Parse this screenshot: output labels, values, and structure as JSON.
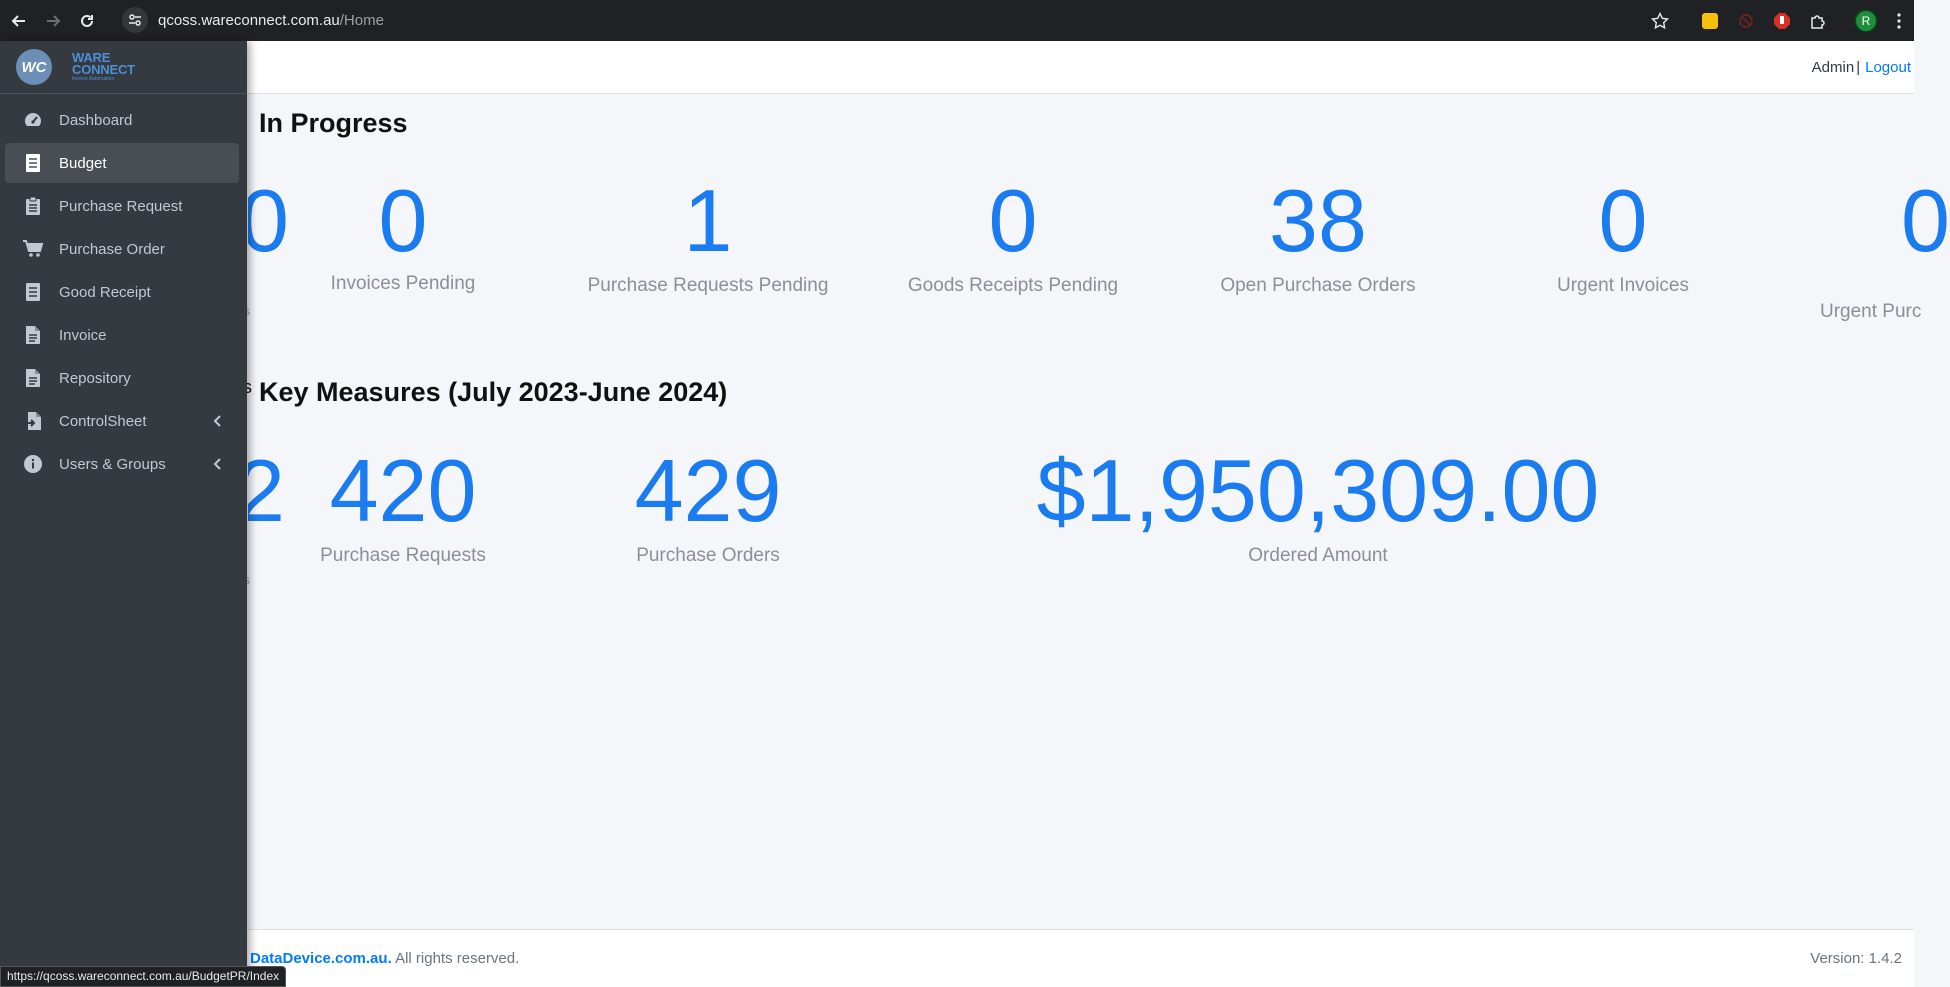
{
  "browser": {
    "url_host": "qcoss.wareconnect.com.au",
    "url_path": "/Home",
    "profile_initial": "R",
    "status_url": "https://qcoss.wareconnect.com.au/BudgetPR/Index"
  },
  "brand": {
    "logo_initials": "WC",
    "name_line1": "WARE",
    "name_line2": "CONNECT",
    "tagline": "Invoice Automation"
  },
  "sidebar": {
    "items": [
      {
        "label": "Dashboard",
        "icon": "tachometer-icon"
      },
      {
        "label": "Budget",
        "icon": "list-doc-icon",
        "active": true
      },
      {
        "label": "Purchase Request",
        "icon": "clipboard-icon"
      },
      {
        "label": "Purchase Order",
        "icon": "cart-icon"
      },
      {
        "label": "Good Receipt",
        "icon": "list-doc-icon"
      },
      {
        "label": "Invoice",
        "icon": "file-icon"
      },
      {
        "label": "Repository",
        "icon": "file-icon"
      },
      {
        "label": "ControlSheet",
        "icon": "file-import-icon",
        "expandable": true
      },
      {
        "label": "Users & Groups",
        "icon": "info-icon",
        "expandable": true
      }
    ]
  },
  "header": {
    "user": "Admin",
    "separator": "|",
    "logout": "Logout"
  },
  "in_progress": {
    "title": "In Progress",
    "stats": [
      {
        "value": "0",
        "label": "Invoices Pending"
      },
      {
        "value": "1",
        "label": "Purchase Requests Pending"
      },
      {
        "value": "0",
        "label": "Goods Receipts Pending"
      },
      {
        "value": "38",
        "label": "Open Purchase Orders"
      },
      {
        "value": "0",
        "label": "Urgent Invoices"
      },
      {
        "value": "0",
        "label": "Urgent Purc"
      }
    ]
  },
  "key_measures": {
    "title": "Key Measures (July 2023-June 2024)",
    "stats": [
      {
        "value": "420",
        "label": "Purchase Requests"
      },
      {
        "value": "429",
        "label": "Purchase Orders"
      },
      {
        "value": "$1,950,309.00",
        "label": "Ordered Amount"
      }
    ]
  },
  "footer": {
    "brand_link": "DataDevice.com.au.",
    "rights": " All rights reserved.",
    "version": "Version: 1.4.2"
  },
  "colors": {
    "accent": "#1a7cf0",
    "sidebar_bg": "#343a40",
    "link": "#007bff"
  }
}
